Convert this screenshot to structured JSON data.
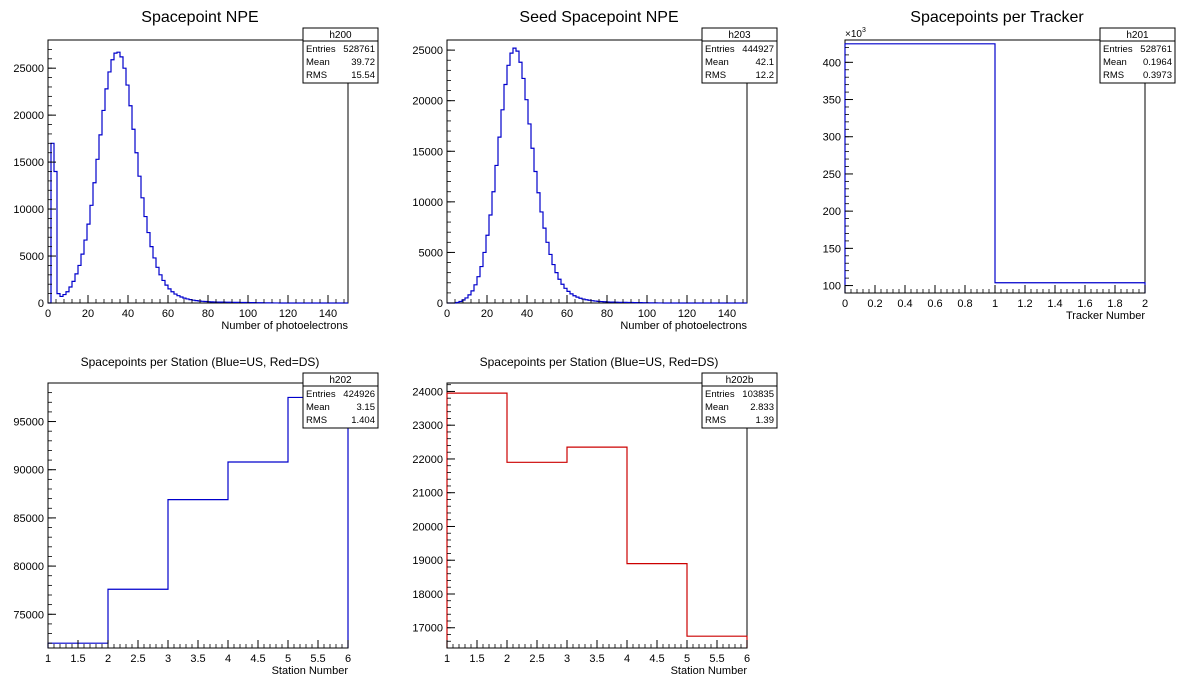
{
  "chart_data": [
    {
      "type": "histogram",
      "title": "Spacepoint NPE",
      "xlabel": "Number of photoelectrons",
      "ylabel": "",
      "xlim": [
        0,
        150
      ],
      "ylim": [
        0,
        28000
      ],
      "x_ticks": [
        "0",
        "20",
        "40",
        "60",
        "80",
        "100",
        "120",
        "140"
      ],
      "y_ticks": [
        "0",
        "5000",
        "10000",
        "15000",
        "20000",
        "25000"
      ],
      "color": "#0000cc",
      "bin_width": 1.5,
      "values": [
        0,
        17000,
        14000,
        1000,
        700,
        900,
        1200,
        1700,
        2300,
        3100,
        4000,
        5200,
        6700,
        8400,
        10400,
        12800,
        15300,
        17900,
        20500,
        22800,
        24600,
        25900,
        26600,
        26700,
        26200,
        25000,
        23200,
        21000,
        18500,
        16000,
        13500,
        11200,
        9200,
        7500,
        6000,
        4800,
        3800,
        3000,
        2400,
        1900,
        1500,
        1200,
        950,
        780,
        640,
        520,
        430,
        360,
        300,
        250,
        210,
        180,
        160,
        140,
        120,
        110,
        100,
        95,
        90,
        85,
        80,
        75,
        70,
        65,
        60,
        55,
        50,
        45,
        40,
        35,
        30,
        25,
        20,
        15,
        10,
        8,
        5,
        3,
        2,
        1,
        0,
        0,
        0,
        0,
        0,
        0,
        0,
        0,
        0,
        0,
        0,
        0,
        0,
        0,
        0,
        0,
        0,
        0,
        0,
        0,
        0
      ],
      "stats": {
        "name": "h200",
        "entries_label": "Entries",
        "entries": "528761",
        "mean_label": "Mean",
        "mean": "39.72",
        "rms_label": "RMS",
        "rms": "15.54"
      }
    },
    {
      "type": "histogram",
      "title": "Seed Spacepoint NPE",
      "xlabel": "Number of photoelectrons",
      "ylabel": "",
      "xlim": [
        0,
        150
      ],
      "ylim": [
        0,
        26000
      ],
      "x_ticks": [
        "0",
        "20",
        "40",
        "60",
        "80",
        "100",
        "120",
        "140"
      ],
      "y_ticks": [
        "0",
        "5000",
        "10000",
        "15000",
        "20000",
        "25000"
      ],
      "color": "#0000cc",
      "bin_width": 1.5,
      "values": [
        0,
        0,
        0,
        50,
        150,
        300,
        500,
        800,
        1200,
        1800,
        2600,
        3600,
        5000,
        6700,
        8700,
        11000,
        13600,
        16400,
        19100,
        21600,
        23500,
        24700,
        25200,
        24900,
        23800,
        22200,
        20100,
        17700,
        15300,
        13000,
        10900,
        9000,
        7400,
        6000,
        4800,
        3800,
        3000,
        2350,
        1850,
        1450,
        1150,
        900,
        720,
        580,
        470,
        390,
        320,
        270,
        230,
        190,
        160,
        140,
        120,
        105,
        95,
        85,
        78,
        70,
        65,
        60,
        55,
        50,
        45,
        40,
        35,
        30,
        25,
        20,
        15,
        10,
        8,
        5,
        3,
        2,
        1,
        0,
        0,
        0,
        0,
        0,
        0,
        0,
        0,
        0,
        0,
        0,
        0,
        0,
        0,
        0,
        0,
        0,
        0,
        0,
        0,
        0,
        0,
        0,
        0,
        0
      ],
      "stats": {
        "name": "h203",
        "entries_label": "Entries",
        "entries": "444927",
        "mean_label": "Mean",
        "mean": "42.1",
        "rms_label": "RMS",
        "rms": "12.2"
      }
    },
    {
      "type": "histogram",
      "title": "Spacepoints per Tracker",
      "xlabel": "Tracker Number",
      "ylabel": "",
      "exponent_label": "×10",
      "exponent_power": "3",
      "xlim": [
        0,
        2
      ],
      "ylim": [
        90,
        430
      ],
      "x_ticks": [
        "0",
        "0.2",
        "0.4",
        "0.6",
        "0.8",
        "1",
        "1.2",
        "1.4",
        "1.6",
        "1.8",
        "2"
      ],
      "y_ticks": [
        "100",
        "150",
        "200",
        "250",
        "300",
        "350",
        "400"
      ],
      "color": "#0000cc",
      "bin_width": 1,
      "values": [
        424.9,
        103.8
      ],
      "stats": {
        "name": "h201",
        "entries_label": "Entries",
        "entries": "528761",
        "mean_label": "Mean",
        "mean": "0.1964",
        "rms_label": "RMS",
        "rms": "0.3973"
      }
    },
    {
      "type": "histogram",
      "title": "Spacepoints per Station (Blue=US, Red=DS)",
      "xlabel": "Station Number",
      "ylabel": "",
      "xlim": [
        1,
        6
      ],
      "ylim": [
        71500,
        99000
      ],
      "x_ticks": [
        "1",
        "1.5",
        "2",
        "2.5",
        "3",
        "3.5",
        "4",
        "4.5",
        "5",
        "5.5",
        "6"
      ],
      "y_ticks": [
        "75000",
        "80000",
        "85000",
        "90000",
        "95000"
      ],
      "color": "#0000cc",
      "bin_width": 1,
      "values": [
        72000,
        77600,
        86900,
        90800,
        97500
      ],
      "stats": {
        "name": "h202",
        "entries_label": "Entries",
        "entries": "424926",
        "mean_label": "Mean",
        "mean": "3.15",
        "rms_label": "RMS",
        "rms": "1.404"
      }
    },
    {
      "type": "histogram",
      "title": "Spacepoints per Station (Blue=US, Red=DS)",
      "xlabel": "Station Number",
      "ylabel": "",
      "xlim": [
        1,
        6
      ],
      "ylim": [
        16400,
        24250
      ],
      "x_ticks": [
        "1",
        "1.5",
        "2",
        "2.5",
        "3",
        "3.5",
        "4",
        "4.5",
        "5",
        "5.5",
        "6"
      ],
      "y_ticks": [
        "17000",
        "18000",
        "19000",
        "20000",
        "21000",
        "22000",
        "23000",
        "24000"
      ],
      "color": "#cc0000",
      "bin_width": 1,
      "values": [
        23950,
        21900,
        22350,
        18900,
        16750
      ],
      "stats": {
        "name": "h202b",
        "entries_label": "Entries",
        "entries": "103835",
        "mean_label": "Mean",
        "mean": "2.833",
        "rms_label": "RMS",
        "rms": "1.39"
      }
    }
  ]
}
